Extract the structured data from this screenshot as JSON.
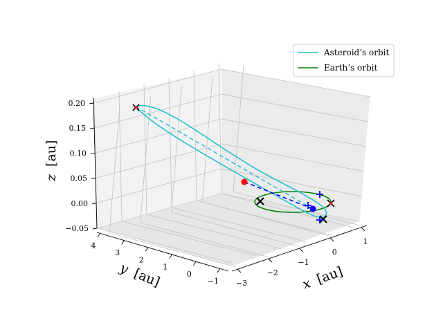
{
  "chart_data": {
    "type": "line",
    "projection": "3d",
    "series": [
      {
        "name": "Asteroid's orbit",
        "color": "#17becf",
        "kind": "ellipse-3d"
      },
      {
        "name": "Earth's orbit",
        "color": "#008000",
        "kind": "circle"
      }
    ],
    "xlabel": "$x$ [au]",
    "ylabel": "$y$ [au]",
    "zlabel": "$z$ [au]",
    "x_ticks": [
      "−3",
      "−2",
      "−1",
      "0",
      "1"
    ],
    "y_ticks": [
      "−1",
      "0",
      "1",
      "2",
      "3",
      "4"
    ],
    "z_ticks": [
      "−0.05",
      "0.00",
      "0.05",
      "0.10",
      "0.15",
      "0.20"
    ],
    "xlim": [
      -3.5,
      1.5
    ],
    "ylim": [
      -1.2,
      4.2
    ],
    "zlim": [
      -0.05,
      0.22
    ],
    "legend": {
      "position": "top-right",
      "entries": [
        "Asteroid’s orbit",
        "Earth’s orbit"
      ]
    },
    "markers": [
      {
        "type": "dot",
        "color": "#ff0000",
        "label": "asteroid position"
      },
      {
        "type": "dot",
        "color": "#0000ff",
        "label": "earth position"
      },
      {
        "type": "x",
        "color": "#000000",
        "label": "node"
      },
      {
        "type": "x",
        "color": "#000000",
        "label": "node"
      },
      {
        "type": "x",
        "color": "#8b0000",
        "label": "aphelion"
      },
      {
        "type": "x",
        "color": "#8b0000",
        "label": "perihelion"
      },
      {
        "type": "plus",
        "color": "#0000ff",
        "label": "earth marker"
      }
    ]
  },
  "legend": {
    "asteroid": "Asteroid’s orbit",
    "earth": "Earth’s orbit"
  },
  "axes": {
    "x_label_var": "x",
    "x_label_unit": "[au]",
    "y_label_var": "y",
    "y_label_unit": "[au]",
    "z_label_var": "z",
    "z_label_unit": "[au]"
  }
}
